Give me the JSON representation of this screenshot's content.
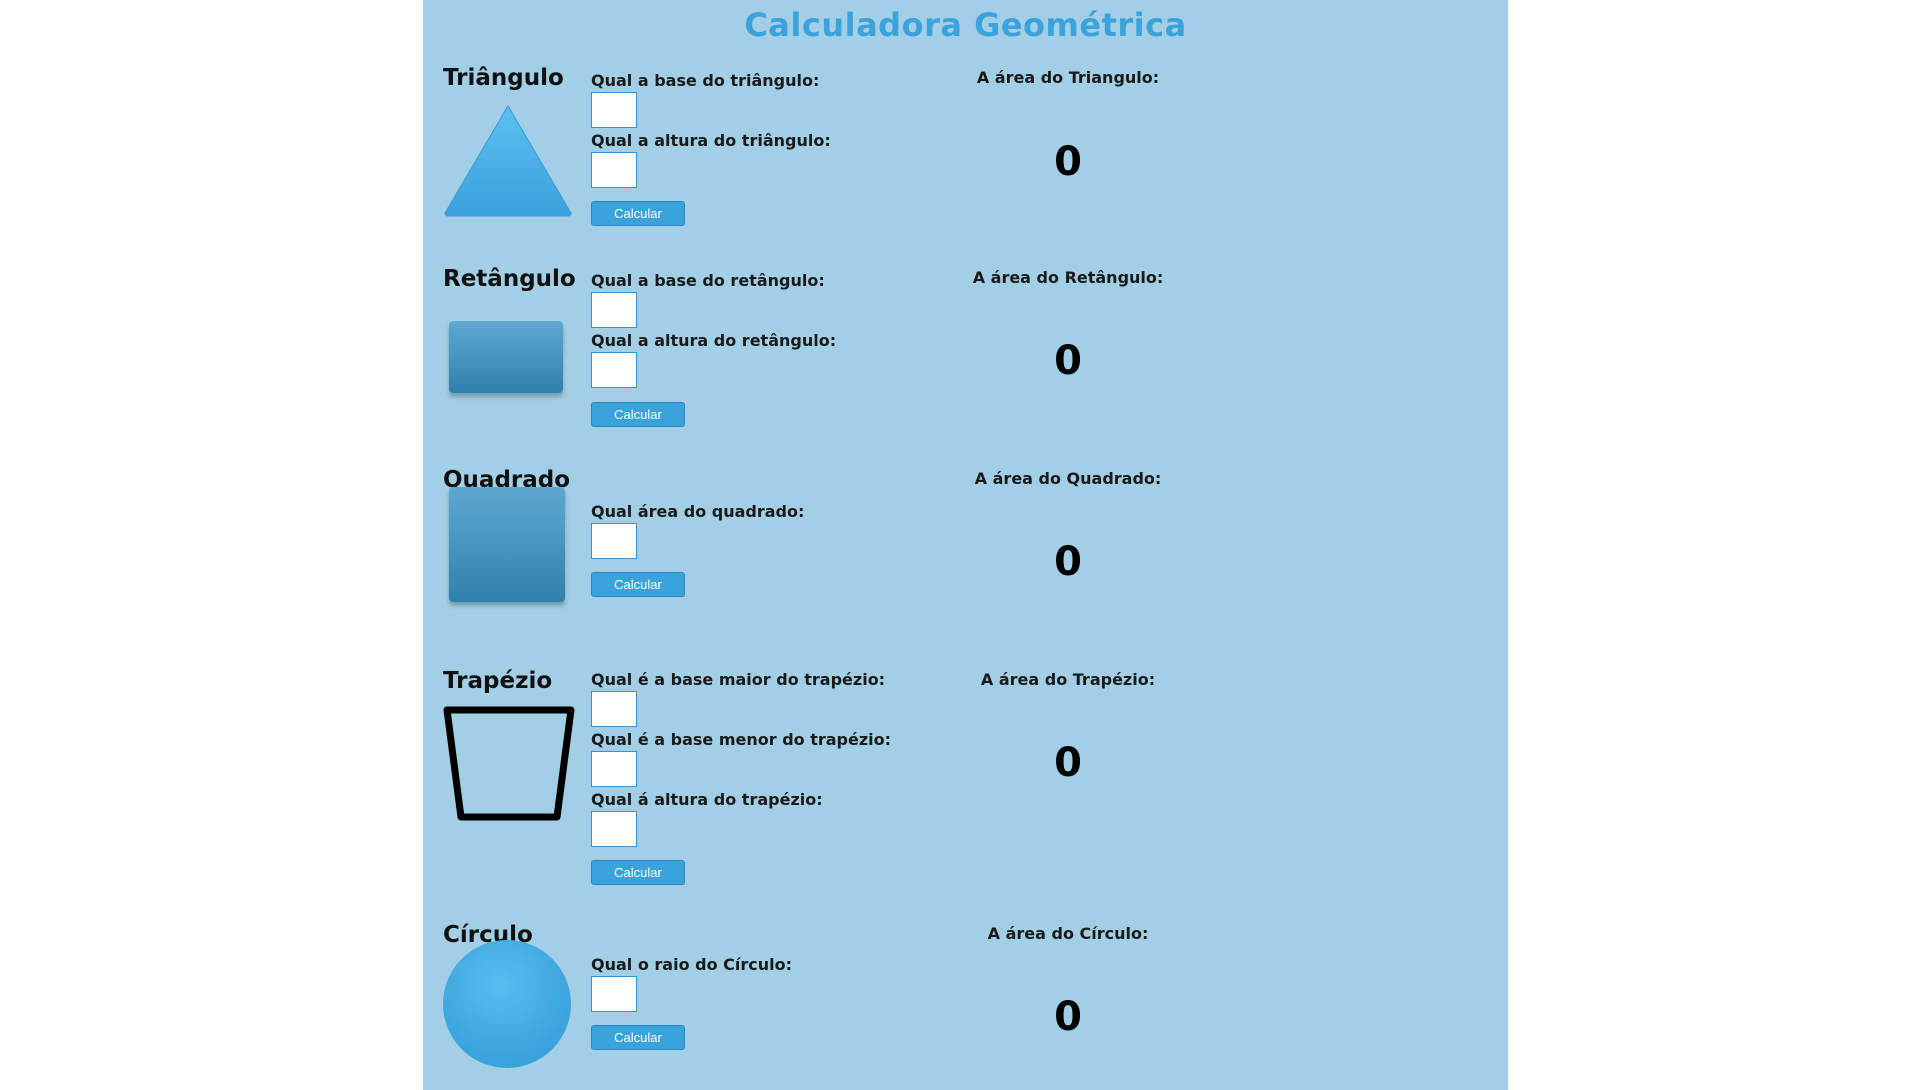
{
  "page": {
    "title": "Calculadora Geométrica"
  },
  "colors": {
    "panel": "#a3cfe6",
    "accent": "#3aa3dc",
    "shape_dark": "#2f81ad"
  },
  "common": {
    "calc_label": "Calcular"
  },
  "triangle": {
    "title": "Triângulo",
    "q_base": "Qual a base do triângulo:",
    "q_height": "Qual a altura do triângulo:",
    "result_label": "A área do Triangulo:",
    "result_value": "0"
  },
  "rectangle": {
    "title": "Retângulo",
    "q_base": "Qual a base do retângulo:",
    "q_height": "Qual a altura do retângulo:",
    "result_label": "A área do Retângulo:",
    "result_value": "0"
  },
  "square": {
    "title": "Quadrado",
    "q_area": "Qual área do quadrado:",
    "result_label": "A área do Quadrado:",
    "result_value": "0"
  },
  "trapezoid": {
    "title": "Trapézio",
    "q_big_base": "Qual é a base maior do trapézio:",
    "q_small_base": "Qual é a base menor do trapézio:",
    "q_height": "Qual á altura do trapézio:",
    "result_label": "A área do Trapézio:",
    "result_value": "0"
  },
  "circle": {
    "title": "Círculo",
    "q_radius": "Qual o raio do Círculo:",
    "result_label": "A área do Círculo:",
    "result_value": "0"
  }
}
